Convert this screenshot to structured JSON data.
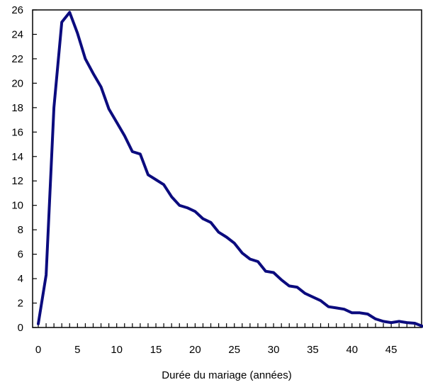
{
  "chart_data": {
    "type": "line",
    "title": "",
    "xlabel": "Durée du mariage (années)",
    "ylabel": "",
    "xlim": [
      0,
      49
    ],
    "ylim": [
      0,
      26
    ],
    "xticks": [
      0,
      5,
      10,
      15,
      20,
      25,
      30,
      35,
      40,
      45
    ],
    "yticks": [
      0,
      2,
      4,
      6,
      8,
      10,
      12,
      14,
      16,
      18,
      20,
      22,
      24,
      26
    ],
    "grid": false,
    "legend": "none",
    "series": [
      {
        "color": "#0b0b7e",
        "x": [
          0,
          1,
          2,
          3,
          4,
          5,
          6,
          7,
          8,
          9,
          10,
          11,
          12,
          13,
          14,
          15,
          16,
          17,
          18,
          19,
          20,
          21,
          22,
          23,
          24,
          25,
          26,
          27,
          28,
          29,
          30,
          31,
          32,
          33,
          34,
          35,
          36,
          37,
          38,
          39,
          40,
          41,
          42,
          43,
          44,
          45,
          46,
          47,
          48,
          49
        ],
        "y": [
          0.3,
          4.3,
          18.0,
          25.0,
          25.8,
          24.1,
          22.0,
          20.8,
          19.7,
          17.9,
          16.8,
          15.7,
          14.4,
          14.2,
          12.5,
          12.1,
          11.7,
          10.7,
          10.0,
          9.8,
          9.5,
          8.9,
          8.6,
          7.8,
          7.4,
          6.9,
          6.1,
          5.6,
          5.4,
          4.6,
          4.5,
          3.9,
          3.4,
          3.3,
          2.8,
          2.5,
          2.2,
          1.7,
          1.6,
          1.5,
          1.2,
          1.2,
          1.1,
          0.7,
          0.5,
          0.4,
          0.5,
          0.4,
          0.35,
          0.1
        ]
      }
    ]
  }
}
